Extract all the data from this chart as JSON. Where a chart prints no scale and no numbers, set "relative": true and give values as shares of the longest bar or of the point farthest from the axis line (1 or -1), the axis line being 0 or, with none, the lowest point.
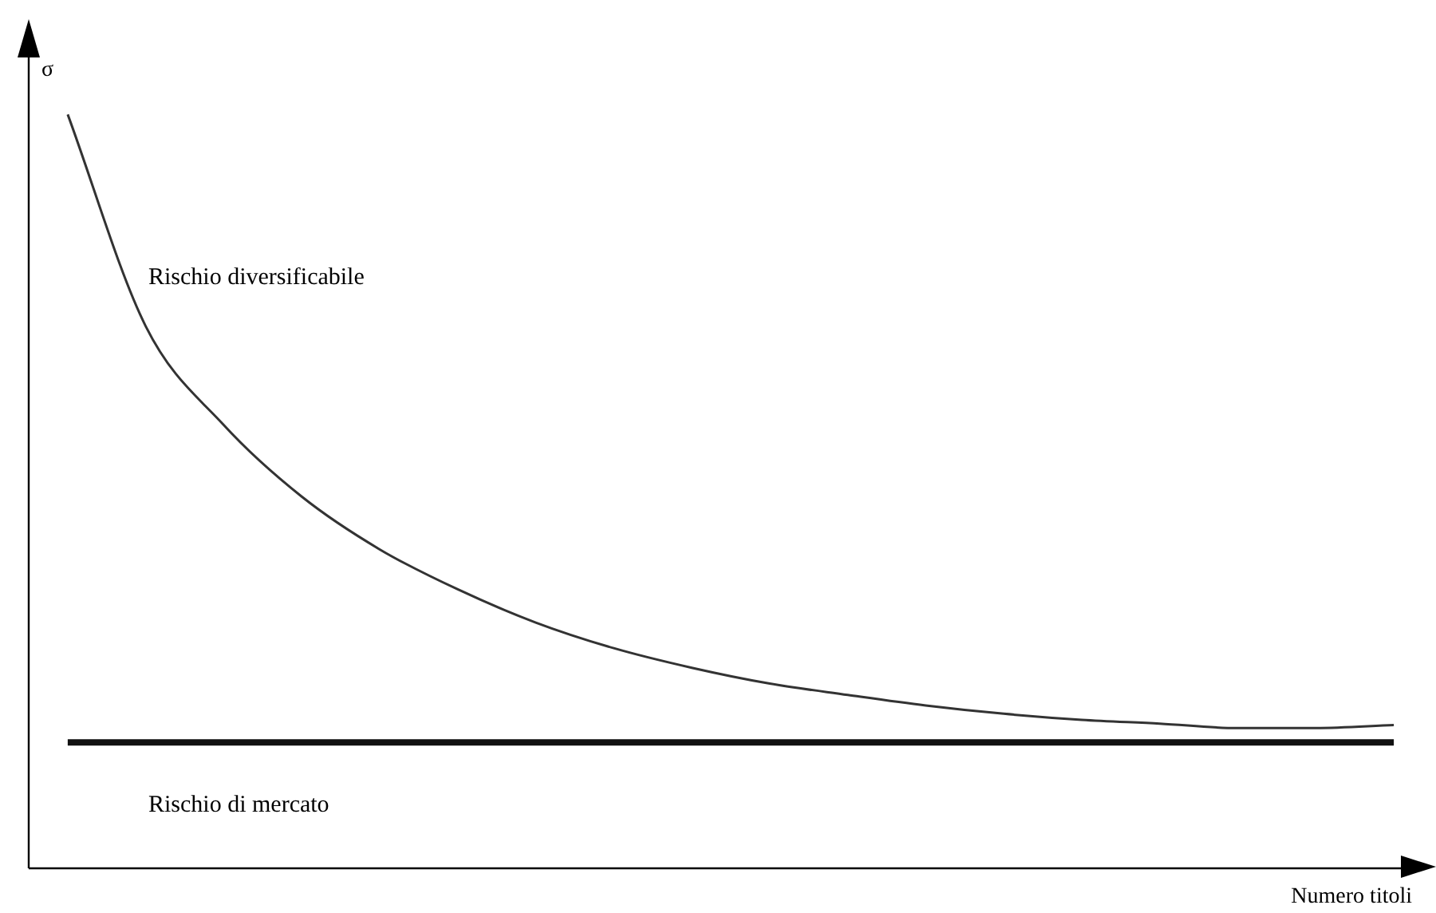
{
  "chart_data": {
    "type": "line",
    "relative": true,
    "ylabel": "σ",
    "xlabel": "Numero titoli",
    "categories": [
      null,
      null,
      null,
      null,
      null,
      null,
      null,
      null,
      null,
      null,
      null,
      null,
      null,
      null,
      null,
      null,
      null,
      null
    ],
    "series": [
      {
        "color": "#333333",
        "values": [
          1,
          0.719,
          0.588,
          0.493,
          0.423,
          0.37,
          0.326,
          0.292,
          0.266,
          0.245,
          0.23,
          0.216,
          0.205,
          0.197,
          0.192,
          0.186,
          0.186,
          0.19
        ]
      },
      {
        "color": "#111111",
        "values": [
          0.167,
          0.167,
          0.167,
          0.167,
          0.167,
          0.167,
          0.167,
          0.167,
          0.167,
          0.167,
          0.167,
          0.167,
          0.167,
          0.167,
          0.167,
          0.167,
          0.167,
          0.167
        ]
      }
    ],
    "annotations": [
      "Rischio diversificabile",
      "Rischio di mercato"
    ],
    "marker": "none",
    "line_style": "solid",
    "legend": false
  }
}
